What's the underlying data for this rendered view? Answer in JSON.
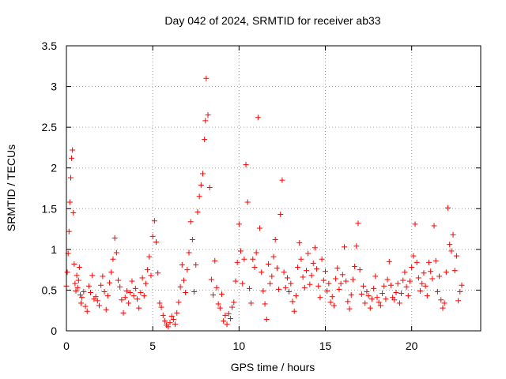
{
  "chart_data": {
    "type": "scatter",
    "title": "Day 042 of 2024, SRMTID for receiver ab33",
    "xlabel": "GPS time / hours",
    "ylabel": "SRMTID / TECUs",
    "xlim": [
      0,
      24
    ],
    "ylim": [
      0,
      3.5
    ],
    "grid": true,
    "series": [
      {
        "name": "SRMTID",
        "color": "#ff0000",
        "marker": "plus",
        "x": [
          0.0,
          0.05,
          0.1,
          0.15,
          0.2,
          0.25,
          0.3,
          0.35,
          0.4,
          0.45,
          0.5,
          0.55,
          0.6,
          0.65,
          0.7,
          0.75,
          0.8,
          0.85,
          0.9,
          1.0,
          1.1,
          1.2,
          1.3,
          1.4,
          1.5,
          1.6,
          1.7,
          1.8,
          1.9,
          2.0,
          2.1,
          2.2,
          2.3,
          2.4,
          2.5,
          2.6,
          2.7,
          2.8,
          2.9,
          3.0,
          3.1,
          3.2,
          3.3,
          3.4,
          3.5,
          3.6,
          3.7,
          3.8,
          3.9,
          4.0,
          4.1,
          4.2,
          4.3,
          4.4,
          4.5,
          4.6,
          4.7,
          4.8,
          4.9,
          5.0,
          5.1,
          5.2,
          5.3,
          5.4,
          5.5,
          5.6,
          5.7,
          5.8,
          5.9,
          6.0,
          6.1,
          6.2,
          6.3,
          6.4,
          6.5,
          6.6,
          6.7,
          6.8,
          6.9,
          7.0,
          7.1,
          7.2,
          7.3,
          7.4,
          7.5,
          7.6,
          7.7,
          7.8,
          7.9,
          8.0,
          8.05,
          8.1,
          8.2,
          8.3,
          8.4,
          8.5,
          8.6,
          8.7,
          8.8,
          8.9,
          9.0,
          9.1,
          9.2,
          9.3,
          9.4,
          9.5,
          9.6,
          9.7,
          9.8,
          9.9,
          10.0,
          10.1,
          10.2,
          10.3,
          10.4,
          10.5,
          10.6,
          10.7,
          10.8,
          10.9,
          11.0,
          11.1,
          11.2,
          11.3,
          11.4,
          11.5,
          11.6,
          11.7,
          11.8,
          11.9,
          12.0,
          12.1,
          12.2,
          12.3,
          12.4,
          12.5,
          12.6,
          12.7,
          12.8,
          12.9,
          13.0,
          13.1,
          13.2,
          13.3,
          13.4,
          13.5,
          13.6,
          13.7,
          13.8,
          13.9,
          14.0,
          14.1,
          14.2,
          14.3,
          14.4,
          14.5,
          14.6,
          14.7,
          14.8,
          14.9,
          15.0,
          15.1,
          15.2,
          15.3,
          15.4,
          15.5,
          15.6,
          15.7,
          15.8,
          15.9,
          16.0,
          16.1,
          16.2,
          16.3,
          16.4,
          16.5,
          16.6,
          16.7,
          16.8,
          16.9,
          17.0,
          17.1,
          17.2,
          17.3,
          17.4,
          17.5,
          17.6,
          17.7,
          17.8,
          17.9,
          18.0,
          18.1,
          18.2,
          18.3,
          18.4,
          18.5,
          18.6,
          18.7,
          18.8,
          18.9,
          19.0,
          19.1,
          19.2,
          19.3,
          19.4,
          19.5,
          19.6,
          19.7,
          19.8,
          19.9,
          20.0,
          20.1,
          20.2,
          20.3,
          20.4,
          20.5,
          20.6,
          20.7,
          20.8,
          20.9,
          21.0,
          21.1,
          21.2,
          21.3,
          21.4,
          21.5,
          21.6,
          21.7,
          21.8,
          21.9,
          22.0,
          22.1,
          22.2,
          22.3,
          22.4,
          22.5,
          22.6,
          22.7,
          22.8,
          22.9
        ],
        "y": [
          0.55,
          0.72,
          0.95,
          1.22,
          1.58,
          1.88,
          2.12,
          2.22,
          1.45,
          0.82,
          0.58,
          0.49,
          0.68,
          0.53,
          0.62,
          0.78,
          0.44,
          0.34,
          0.41,
          0.48,
          0.3,
          0.24,
          0.55,
          0.47,
          0.68,
          0.39,
          0.42,
          0.37,
          0.31,
          0.56,
          0.67,
          0.48,
          0.26,
          0.43,
          0.59,
          0.72,
          0.88,
          1.14,
          0.96,
          0.62,
          0.54,
          0.38,
          0.22,
          0.41,
          0.49,
          0.34,
          0.47,
          0.61,
          0.43,
          0.52,
          0.39,
          0.28,
          0.47,
          0.65,
          0.43,
          0.58,
          0.75,
          0.91,
          0.68,
          1.16,
          1.35,
          1.09,
          0.71,
          0.34,
          0.29,
          0.19,
          0.12,
          0.07,
          0.05,
          0.1,
          0.18,
          0.14,
          0.08,
          0.22,
          0.35,
          0.54,
          0.81,
          0.62,
          0.47,
          0.75,
          0.96,
          1.34,
          1.12,
          0.48,
          0.81,
          1.46,
          1.65,
          1.79,
          1.93,
          2.35,
          2.58,
          3.1,
          2.65,
          1.76,
          0.63,
          0.44,
          0.86,
          0.53,
          0.33,
          0.28,
          0.45,
          0.12,
          0.19,
          0.08,
          0.21,
          0.15,
          0.29,
          0.35,
          0.61,
          0.84,
          1.31,
          0.98,
          0.58,
          0.88,
          2.04,
          1.58,
          0.52,
          0.34,
          0.88,
          0.78,
          0.96,
          2.62,
          1.26,
          0.72,
          0.49,
          0.33,
          0.14,
          0.82,
          0.58,
          0.67,
          0.91,
          1.12,
          0.77,
          0.51,
          1.43,
          1.85,
          0.72,
          0.53,
          0.65,
          0.48,
          0.58,
          0.36,
          0.24,
          0.43,
          0.78,
          1.08,
          0.88,
          0.66,
          0.53,
          0.74,
          0.95,
          0.57,
          0.68,
          0.83,
          1.02,
          0.76,
          0.55,
          0.41,
          0.88,
          0.62,
          0.73,
          0.49,
          0.58,
          0.35,
          0.42,
          0.31,
          0.64,
          0.77,
          0.51,
          0.58,
          0.69,
          1.03,
          0.61,
          0.36,
          0.27,
          0.44,
          0.63,
          0.79,
          1.04,
          1.32,
          0.75,
          0.45,
          0.55,
          0.34,
          0.48,
          0.43,
          0.28,
          0.39,
          0.52,
          0.67,
          0.41,
          0.35,
          0.31,
          0.46,
          0.55,
          0.39,
          0.63,
          0.85,
          0.56,
          0.41,
          0.38,
          0.47,
          0.58,
          0.34,
          0.46,
          0.62,
          0.72,
          0.54,
          0.43,
          0.61,
          0.78,
          0.92,
          1.31,
          0.84,
          0.65,
          0.49,
          0.58,
          0.71,
          0.55,
          0.43,
          0.84,
          0.73,
          0.64,
          1.29,
          0.86,
          0.48,
          0.67,
          0.38,
          0.28,
          0.34,
          0.72,
          1.51,
          1.06,
          0.98,
          1.18,
          0.74,
          0.92,
          0.37,
          0.48,
          0.56
        ]
      }
    ],
    "x_ticks": [
      0,
      5,
      10,
      15,
      20
    ],
    "x_tick_labels": [
      "0",
      "5",
      "10",
      "15",
      "20"
    ],
    "y_ticks": [
      0,
      0.5,
      1,
      1.5,
      2,
      2.5,
      3,
      3.5
    ],
    "y_tick_labels": [
      "0",
      "0.5",
      "1",
      "1.5",
      "2",
      "2.5",
      "3",
      "3.5"
    ]
  }
}
